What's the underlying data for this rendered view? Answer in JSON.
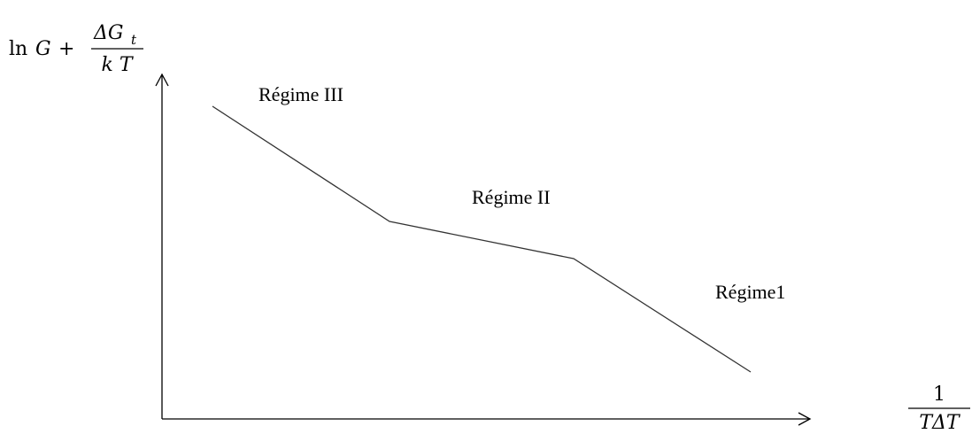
{
  "y_axis_label": {
    "function": "ln",
    "variable": "G",
    "operator": "+",
    "numerator": "ΔG",
    "numerator_subscript": "t",
    "denominator": "k T"
  },
  "x_axis_label": {
    "numerator": "1",
    "denominator": "TΔT"
  },
  "regimes": [
    "Régime III",
    "Régime II",
    "Régime1"
  ]
}
